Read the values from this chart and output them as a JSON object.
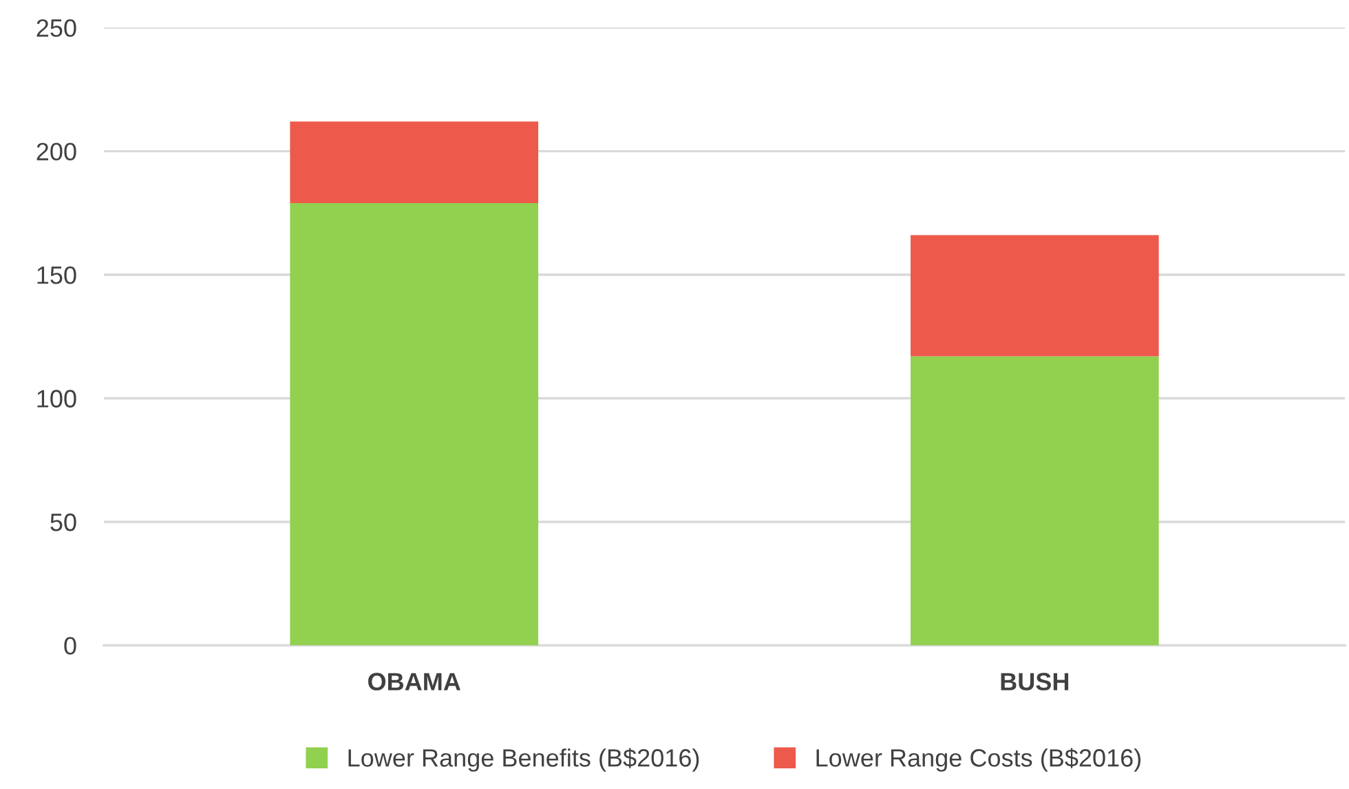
{
  "chart_data": {
    "type": "bar",
    "stacked": true,
    "categories": [
      "OBAMA",
      "BUSH"
    ],
    "series": [
      {
        "name": "Lower Range Benefits (B$2016)",
        "color": "#92d050",
        "values": [
          179,
          117
        ]
      },
      {
        "name": "Lower Range Costs (B$2016)",
        "color": "#ed5a4c",
        "values": [
          33,
          49
        ]
      }
    ],
    "ylim": [
      0,
      250
    ],
    "yticks": [
      0,
      50,
      100,
      150,
      200,
      250
    ],
    "grid": "y",
    "legend": "bottom"
  }
}
